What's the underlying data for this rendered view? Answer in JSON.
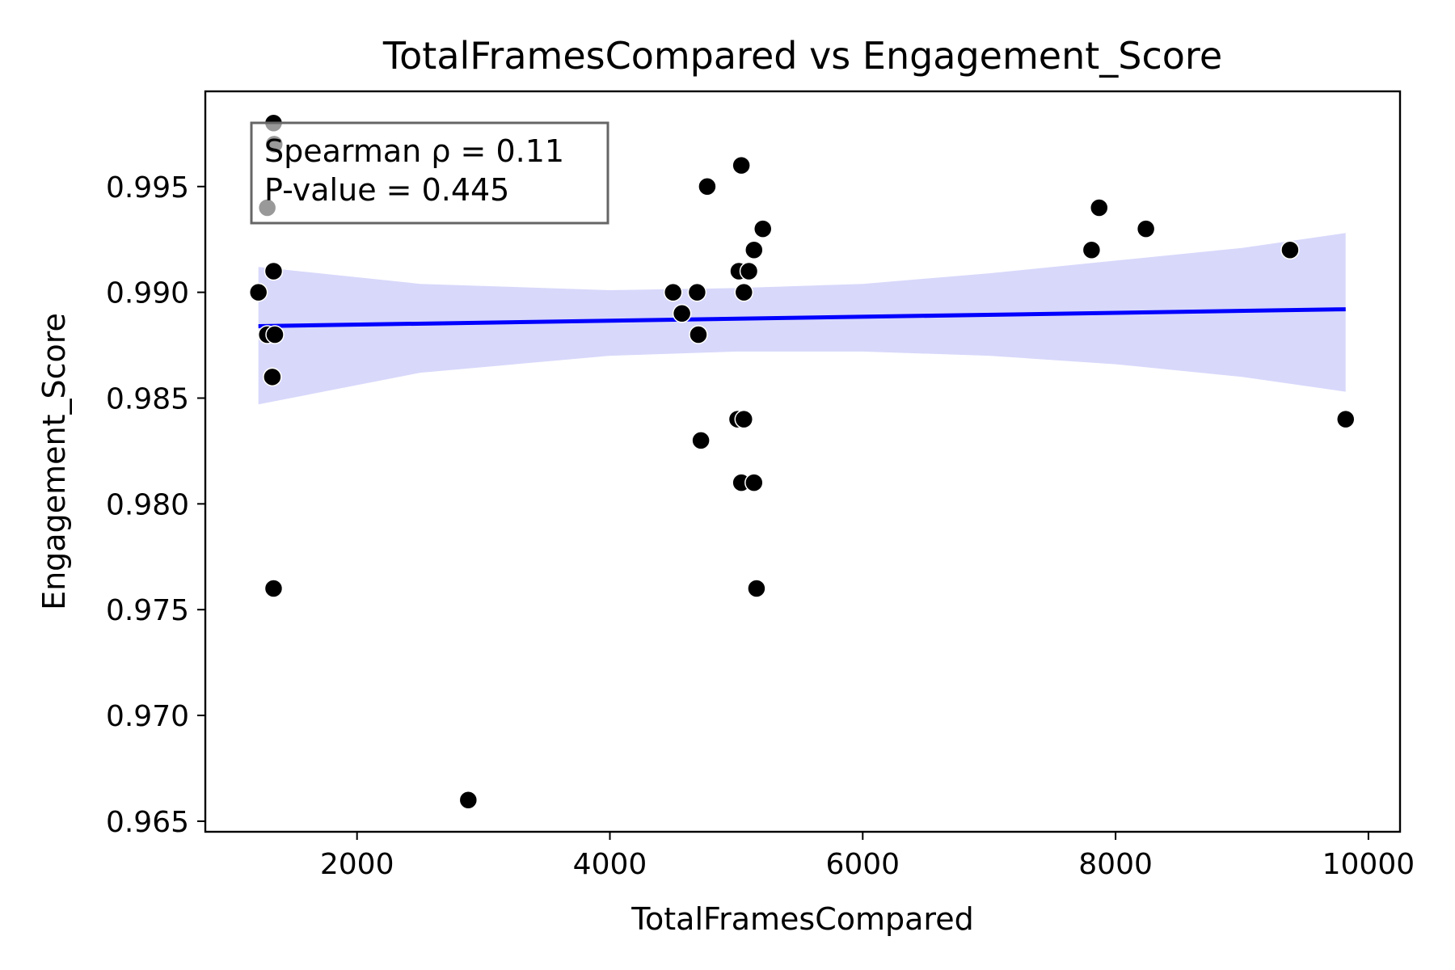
{
  "chart_data": {
    "type": "scatter",
    "title": "TotalFramesCompared vs Engagement_Score",
    "xlabel": "TotalFramesCompared",
    "ylabel": "Engagement_Score",
    "xlim": [
      800,
      10250
    ],
    "ylim": [
      0.9645,
      0.9995
    ],
    "xticks": [
      2000,
      4000,
      6000,
      8000,
      10000
    ],
    "xtick_labels": [
      "2000",
      "4000",
      "6000",
      "8000",
      "10000"
    ],
    "yticks": [
      0.965,
      0.97,
      0.975,
      0.98,
      0.985,
      0.99,
      0.995
    ],
    "ytick_labels": [
      "0.965",
      "0.970",
      "0.975",
      "0.980",
      "0.985",
      "0.990",
      "0.995"
    ],
    "grid": false,
    "points": [
      {
        "x": 1340,
        "y": 0.998
      },
      {
        "x": 1290,
        "y": 0.994
      },
      {
        "x": 1345,
        "y": 0.997
      },
      {
        "x": 1340,
        "y": 0.991
      },
      {
        "x": 1220,
        "y": 0.99
      },
      {
        "x": 1290,
        "y": 0.988
      },
      {
        "x": 1350,
        "y": 0.988
      },
      {
        "x": 1330,
        "y": 0.986
      },
      {
        "x": 1340,
        "y": 0.976
      },
      {
        "x": 2880,
        "y": 0.966
      },
      {
        "x": 4500,
        "y": 0.99
      },
      {
        "x": 4570,
        "y": 0.989
      },
      {
        "x": 4690,
        "y": 0.99
      },
      {
        "x": 4700,
        "y": 0.988
      },
      {
        "x": 4720,
        "y": 0.983
      },
      {
        "x": 4770,
        "y": 0.995
      },
      {
        "x": 5020,
        "y": 0.991
      },
      {
        "x": 5040,
        "y": 0.996
      },
      {
        "x": 5010,
        "y": 0.984
      },
      {
        "x": 5060,
        "y": 0.984
      },
      {
        "x": 5040,
        "y": 0.981
      },
      {
        "x": 5060,
        "y": 0.99
      },
      {
        "x": 5100,
        "y": 0.991
      },
      {
        "x": 5140,
        "y": 0.992
      },
      {
        "x": 5140,
        "y": 0.981
      },
      {
        "x": 5160,
        "y": 0.976
      },
      {
        "x": 5210,
        "y": 0.993
      },
      {
        "x": 7810,
        "y": 0.992
      },
      {
        "x": 7870,
        "y": 0.994
      },
      {
        "x": 8240,
        "y": 0.993
      },
      {
        "x": 9380,
        "y": 0.992
      },
      {
        "x": 9820,
        "y": 0.984
      }
    ],
    "regression": {
      "x_start": 1220,
      "x_end": 9820,
      "y_start": 0.9884,
      "y_end": 0.9892,
      "color": "#0000ff"
    },
    "confidence_band": {
      "x": [
        1220,
        2500,
        4000,
        5000,
        6000,
        7000,
        8000,
        9000,
        9820
      ],
      "upper": [
        0.9912,
        0.9904,
        0.9901,
        0.9902,
        0.9904,
        0.9909,
        0.9915,
        0.9921,
        0.9928
      ],
      "lower": [
        0.9847,
        0.9862,
        0.987,
        0.9872,
        0.9872,
        0.987,
        0.9866,
        0.986,
        0.9853
      ],
      "color": "#d8d8fb"
    },
    "point_color": "#000000",
    "point_edge_color": "#ffffff",
    "annotation": {
      "lines": [
        "Spearman ρ = 0.11",
        "P-value = 0.445"
      ],
      "placement": "top-left"
    }
  }
}
